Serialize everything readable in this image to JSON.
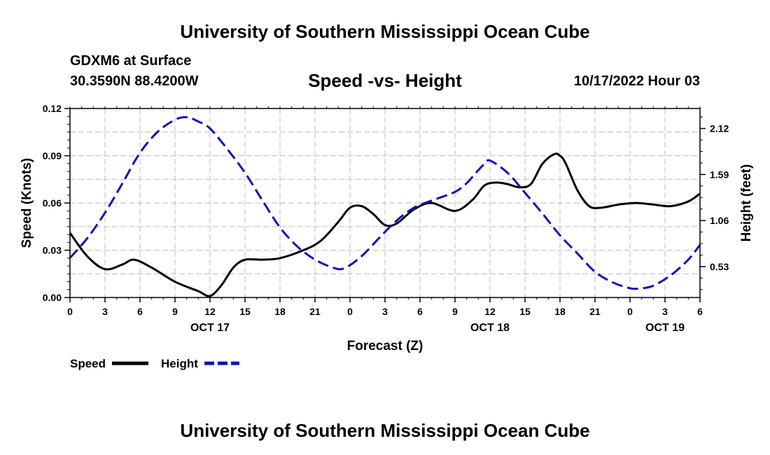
{
  "header": {
    "title": "University of Southern Mississippi Ocean Cube",
    "station": "GDXM6 at Surface",
    "coords": "30.3590N  88.4200W",
    "subtitle": "Speed -vs- Height",
    "datetime": "10/17/2022 Hour 03"
  },
  "footer": {
    "title": "University of Southern Mississippi Ocean Cube"
  },
  "chart_data": {
    "type": "line",
    "title": "Speed -vs- Height",
    "xlabel": "Forecast (Z)",
    "ylabel": "Speed (Knots)",
    "y2label": "Height (feet)",
    "xlim": [
      0,
      54
    ],
    "ylim": [
      0,
      0.12
    ],
    "y2lim": [
      0.174,
      2.35
    ],
    "grid": true,
    "x_ticks": [
      0,
      3,
      6,
      9,
      12,
      15,
      18,
      21,
      24,
      27,
      30,
      33,
      36,
      39,
      42,
      45,
      48,
      51,
      54
    ],
    "x_tick_labels": [
      "0",
      "3",
      "6",
      "9",
      "12",
      "15",
      "18",
      "21",
      "0",
      "3",
      "6",
      "9",
      "12",
      "15",
      "18",
      "21",
      "0",
      "3",
      "6"
    ],
    "y_ticks": [
      0,
      0.03,
      0.06,
      0.09,
      0.12
    ],
    "y_tick_labels": [
      "0.00",
      "0.03",
      "0.06",
      "0.09",
      "0.12"
    ],
    "y2_ticks": [
      0.53,
      1.06,
      1.59,
      2.12
    ],
    "y2_tick_labels": [
      "0.53",
      "1.06",
      "1.59",
      "2.12"
    ],
    "date_labels": [
      {
        "x": 12,
        "label": "OCT 17"
      },
      {
        "x": 36,
        "label": "OCT 18"
      },
      {
        "x": 51,
        "label": "OCT 19"
      }
    ],
    "legend_position": "bottom-left",
    "series": [
      {
        "name": "Speed",
        "axis": "left",
        "color": "#000000",
        "dash": "solid",
        "x": [
          0,
          1.5,
          3,
          4.5,
          5.5,
          7,
          9,
          11,
          12,
          13,
          14,
          15,
          16.5,
          18,
          20,
          21.5,
          23,
          24,
          25,
          26,
          27,
          28,
          29.5,
          31,
          33,
          34.5,
          35.5,
          36.5,
          37.5,
          38.5,
          39.5,
          40.5,
          41.5,
          42,
          42.5,
          43.5,
          44.5,
          45.5,
          47,
          48.5,
          50,
          51.5,
          53,
          54
        ],
        "values": [
          0.041,
          0.026,
          0.018,
          0.021,
          0.024,
          0.019,
          0.01,
          0.004,
          0.001,
          0.008,
          0.019,
          0.024,
          0.024,
          0.025,
          0.03,
          0.036,
          0.048,
          0.057,
          0.058,
          0.053,
          0.046,
          0.047,
          0.056,
          0.06,
          0.055,
          0.062,
          0.071,
          0.073,
          0.072,
          0.07,
          0.072,
          0.085,
          0.091,
          0.09,
          0.085,
          0.068,
          0.058,
          0.057,
          0.059,
          0.06,
          0.059,
          0.058,
          0.061,
          0.066
        ]
      },
      {
        "name": "Height",
        "axis": "right",
        "color": "#1010c0",
        "dash": "dashed",
        "x": [
          0,
          1.5,
          3,
          4.5,
          6,
          7.5,
          9,
          10,
          11,
          12,
          13.5,
          15,
          16.5,
          18,
          19.5,
          21,
          22.5,
          23.5,
          25,
          26.5,
          28,
          29.5,
          31,
          33,
          34,
          35,
          35.5,
          36,
          37.5,
          39,
          40.5,
          42,
          43.5,
          45,
          46.5,
          48,
          49,
          50,
          51.5,
          53,
          54
        ],
        "values": [
          0.63,
          0.86,
          1.15,
          1.49,
          1.84,
          2.08,
          2.22,
          2.25,
          2.2,
          2.12,
          1.88,
          1.61,
          1.29,
          0.98,
          0.76,
          0.61,
          0.52,
          0.51,
          0.65,
          0.86,
          1.06,
          1.21,
          1.29,
          1.39,
          1.49,
          1.64,
          1.71,
          1.75,
          1.61,
          1.38,
          1.14,
          0.89,
          0.68,
          0.47,
          0.35,
          0.28,
          0.28,
          0.31,
          0.43,
          0.61,
          0.78
        ]
      }
    ]
  }
}
